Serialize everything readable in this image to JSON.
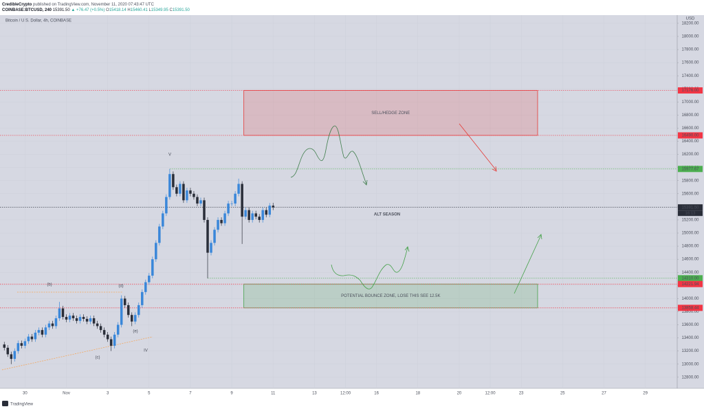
{
  "header": {
    "author": "CredibleCrypto",
    "published": "published on TradingView.com, November 11, 2020 07:43:47 UTC",
    "symbol": "COINBASE:BTCUSD, 240",
    "last": "15391.50",
    "change": "▲ +76.47 (+0.5%)",
    "ohlc": [
      {
        "label": "O",
        "value": "15418.14"
      },
      {
        "label": "H",
        "value": "15460.41"
      },
      {
        "label": "L",
        "value": "15349.95"
      },
      {
        "label": "C",
        "value": "15391.50"
      }
    ]
  },
  "footer": {
    "brand": "TradingView"
  },
  "chart_data": {
    "type": "candlestick",
    "subtitle": "Bitcoin / U.S. Dollar, 4h, COINBASE",
    "currency": "USD",
    "up_color": "#3a87d9",
    "down_color": "#2a2e39",
    "grid": true,
    "x": [
      -24,
      -20,
      -16,
      -12,
      -8,
      -4,
      0,
      4,
      8,
      12,
      16,
      20,
      24,
      28,
      32,
      36,
      40,
      44,
      48,
      52,
      56,
      60,
      64,
      68,
      72,
      76,
      80,
      84,
      88,
      92,
      96,
      100,
      104,
      108,
      112,
      116,
      120,
      124,
      128,
      132,
      136,
      140,
      144,
      148,
      152,
      156,
      160,
      164,
      168,
      172,
      176,
      180,
      184,
      188,
      192,
      196,
      200,
      204,
      208,
      212,
      216,
      220,
      224,
      228,
      232,
      236,
      240,
      244,
      248,
      252,
      256,
      260,
      264,
      268,
      272,
      276,
      280,
      284,
      288
    ],
    "open": [
      13300,
      13250,
      13150,
      13080,
      13200,
      13320,
      13280,
      13350,
      13420,
      13380,
      13480,
      13520,
      13450,
      13560,
      13620,
      13580,
      13700,
      13850,
      13720,
      13680,
      13740,
      13700,
      13660,
      13720,
      13690,
      13650,
      13700,
      13620,
      13580,
      13520,
      13450,
      13380,
      13280,
      13450,
      13600,
      14000,
      13900,
      13750,
      13650,
      13750,
      13900,
      14100,
      14250,
      14350,
      14600,
      14850,
      15100,
      15300,
      15550,
      15900,
      15700,
      15600,
      15750,
      15500,
      15650,
      15600,
      15550,
      15450,
      15500,
      15200,
      14700,
      14850,
      15050,
      15200,
      15150,
      15300,
      15450,
      15450,
      15600,
      15750,
      15250,
      15350,
      15200,
      15300,
      15250,
      15200,
      15350,
      15280,
      15418.14
    ],
    "high": [
      13340,
      13290,
      13190,
      13240,
      13360,
      13360,
      13390,
      13460,
      13460,
      13520,
      13560,
      13560,
      13600,
      13660,
      13660,
      13740,
      13950,
      13890,
      13760,
      13780,
      13780,
      13740,
      13760,
      13760,
      13730,
      13740,
      13740,
      13660,
      13620,
      13560,
      13490,
      13420,
      13490,
      13640,
      14050,
      14040,
      13940,
      13790,
      13790,
      13940,
      14140,
      14290,
      14390,
      14640,
      14890,
      15140,
      15340,
      15590,
      15977.67,
      15940,
      15740,
      15790,
      15790,
      15690,
      15690,
      15640,
      15590,
      15540,
      15540,
      15240,
      14890,
      15090,
      15240,
      15240,
      15340,
      15490,
      15490,
      15640,
      15830,
      15790,
      15390,
      15390,
      15340,
      15340,
      15290,
      15390,
      15390,
      15458.14,
      15460.41
    ],
    "low": [
      13210,
      13110,
      13000,
      13040,
      13160,
      13240,
      13240,
      13310,
      13340,
      13340,
      13440,
      13410,
      13410,
      13520,
      13540,
      13540,
      13660,
      13680,
      13640,
      13640,
      13660,
      13620,
      13620,
      13650,
      13610,
      13610,
      13580,
      13540,
      13480,
      13410,
      13340,
      13200,
      13240,
      13410,
      13560,
      13860,
      13710,
      13580,
      13610,
      13710,
      13860,
      14060,
      14210,
      14310,
      14560,
      14810,
      15060,
      15260,
      15510,
      15660,
      15560,
      15560,
      15460,
      15460,
      15560,
      15510,
      15410,
      15410,
      15160,
      14310,
      14660,
      14810,
      15010,
      15110,
      15110,
      15260,
      15410,
      15410,
      15560,
      14834,
      15210,
      15160,
      15160,
      15210,
      15160,
      15160,
      15240,
      15240,
      15349.95
    ],
    "close": [
      13250,
      13150,
      13080,
      13200,
      13320,
      13280,
      13350,
      13420,
      13380,
      13480,
      13520,
      13450,
      13560,
      13620,
      13580,
      13700,
      13850,
      13720,
      13680,
      13740,
      13700,
      13660,
      13720,
      13690,
      13650,
      13700,
      13620,
      13580,
      13520,
      13450,
      13380,
      13280,
      13450,
      13600,
      14000,
      13900,
      13750,
      13650,
      13750,
      13900,
      14100,
      14250,
      14350,
      14600,
      14850,
      15100,
      15300,
      15550,
      15900,
      15700,
      15600,
      15750,
      15500,
      15650,
      15600,
      15550,
      15450,
      15500,
      15200,
      14700,
      14850,
      15050,
      15200,
      15150,
      15300,
      15450,
      15450,
      15600,
      15750,
      15250,
      15350,
      15200,
      15300,
      15250,
      15200,
      15350,
      15280,
      15418.14,
      15391.5
    ],
    "xlim": [
      -29,
      757
    ],
    "xticks": [
      {
        "value": 0,
        "label": "30"
      },
      {
        "value": 48,
        "label": "Nov"
      },
      {
        "value": 96,
        "label": "3"
      },
      {
        "value": 144,
        "label": "5"
      },
      {
        "value": 192,
        "label": "7"
      },
      {
        "value": 240,
        "label": "9"
      },
      {
        "value": 288,
        "label": "11"
      },
      {
        "value": 336,
        "label": "13"
      },
      {
        "value": 372,
        "label": "12:00"
      },
      {
        "value": 408,
        "label": "16"
      },
      {
        "value": 456,
        "label": "18"
      },
      {
        "value": 504,
        "label": "20"
      },
      {
        "value": 540,
        "label": "12:00"
      },
      {
        "value": 576,
        "label": "23"
      },
      {
        "value": 624,
        "label": "25"
      },
      {
        "value": 672,
        "label": "27"
      },
      {
        "value": 720,
        "label": "29"
      }
    ],
    "ylim": [
      12630,
      18325
    ],
    "yticks": [
      {
        "value": 12800,
        "label": "12800.00"
      },
      {
        "value": 13000,
        "label": "13000.00"
      },
      {
        "value": 13200,
        "label": "13200.00"
      },
      {
        "value": 13400,
        "label": "13400.00"
      },
      {
        "value": 13600,
        "label": "13600.00"
      },
      {
        "value": 13800,
        "label": "13800.00"
      },
      {
        "value": 14000,
        "label": "14000.00"
      },
      {
        "value": 14200,
        "label": "14200.00"
      },
      {
        "value": 14400,
        "label": "14400.00"
      },
      {
        "value": 14600,
        "label": "14600.00"
      },
      {
        "value": 14800,
        "label": "14800.00"
      },
      {
        "value": 15000,
        "label": "15000.00"
      },
      {
        "value": 15200,
        "label": "15200.00"
      },
      {
        "value": 15400,
        "label": "15400.00"
      },
      {
        "value": 15600,
        "label": "15600.00"
      },
      {
        "value": 15800,
        "label": "15800.00"
      },
      {
        "value": 16000,
        "label": "16000.00"
      },
      {
        "value": 16200,
        "label": "16200.00"
      },
      {
        "value": 16400,
        "label": "16400.00"
      },
      {
        "value": 16600,
        "label": "16600.00"
      },
      {
        "value": 16800,
        "label": "16800.00"
      },
      {
        "value": 17000,
        "label": "17000.00"
      },
      {
        "value": 17200,
        "label": "17200.00"
      },
      {
        "value": 17400,
        "label": "17400.00"
      },
      {
        "value": 17600,
        "label": "17600.00"
      },
      {
        "value": 17800,
        "label": "17800.00"
      },
      {
        "value": 18000,
        "label": "18000.00"
      },
      {
        "value": 18200,
        "label": "18200.00"
      }
    ],
    "price_lines": [
      {
        "value": 17176,
        "label": "17176.00",
        "color": "#f23645"
      },
      {
        "value": 16490,
        "label": "16490.00",
        "color": "#f23645"
      },
      {
        "value": 15977.67,
        "label": "15977.67",
        "color": "#4caf50",
        "from": 168
      },
      {
        "value": 15391.5,
        "label": "15391.50",
        "color": "#2a2e39",
        "countdown": "16:13"
      },
      {
        "value": 14310,
        "label": "14310.00",
        "color": "#4caf50",
        "from": 212
      },
      {
        "value": 14221.94,
        "label": "14221.94",
        "color": "#f23645"
      },
      {
        "value": 13858.44,
        "label": "13858.44",
        "color": "#f23645"
      }
    ],
    "zones": [
      {
        "label": "SELL/HEDGE ZONE",
        "ylim": [
          16490,
          17176
        ],
        "xlim": [
          254,
          595
        ],
        "color": "#e53935"
      },
      {
        "label": "POTENTIAL BOUNCE ZONE, LOSE THIS SEE 12.5K",
        "ylim": [
          13858.44,
          14221.94
        ],
        "xlim": [
          254,
          595
        ],
        "color": "#43a047"
      }
    ],
    "annotations": [
      {
        "text": "ALT SEASON",
        "color": "#1e4fa3"
      },
      {
        "text": "(b)",
        "color": "#3b3f8f"
      },
      {
        "text": "(c)",
        "color": "#3b3f8f"
      },
      {
        "text": "(d)",
        "color": "#3b3f8f"
      },
      {
        "text": "(e)",
        "color": "#3b3f8f"
      },
      {
        "text": "IV",
        "color": "#43a047"
      },
      {
        "text": "V",
        "color": "#43a047"
      }
    ]
  }
}
